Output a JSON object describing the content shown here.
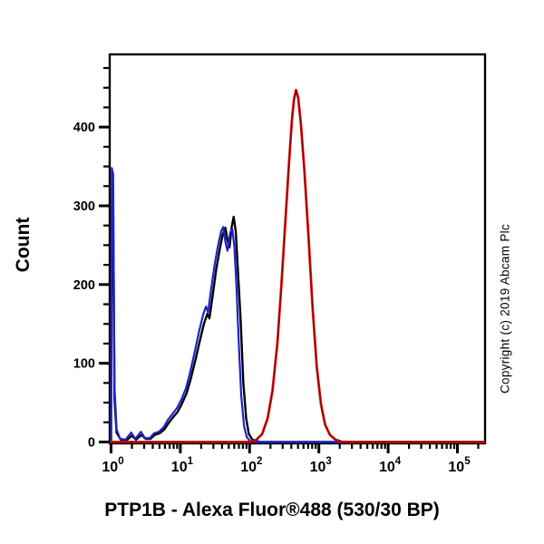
{
  "figure": {
    "background": "#ffffff",
    "frame_color": "#000000"
  },
  "chart_data": {
    "type": "line",
    "subtype": "flow-cytometry-histogram",
    "title": "PTP1B - Alexa Fluor®488 (530/30 BP)",
    "xlabel": "PTP1B - Alexa Fluor®488 (530/30 BP)",
    "ylabel": "Count",
    "copyright": "Copyright (c) 2019 Abcam Plc",
    "x_scale": "log10",
    "xlim_log10": [
      0,
      5.4
    ],
    "ylim": [
      0,
      490
    ],
    "grid": false,
    "legend": "none",
    "x_major_ticks": [
      {
        "base": "10",
        "exponent": "0",
        "log10": 0
      },
      {
        "base": "10",
        "exponent": "1",
        "log10": 1
      },
      {
        "base": "10",
        "exponent": "2",
        "log10": 2
      },
      {
        "base": "10",
        "exponent": "3",
        "log10": 3
      },
      {
        "base": "10",
        "exponent": "4",
        "log10": 4
      },
      {
        "base": "10",
        "exponent": "5",
        "log10": 5
      }
    ],
    "x_minor_ticks": "2-9 per decade",
    "y_major_ticks": [
      {
        "label": "0",
        "value": 0
      },
      {
        "label": "100",
        "value": 100
      },
      {
        "label": "200",
        "value": 200
      },
      {
        "label": "300",
        "value": 300
      },
      {
        "label": "400",
        "value": 400
      }
    ],
    "y_minor_step": 25,
    "series": [
      {
        "name": "black-curve",
        "color": "#000000",
        "stroke_width": 2.4,
        "points_log10x_count": [
          [
            0.0,
            0
          ],
          [
            0.01,
            300
          ],
          [
            0.03,
            300
          ],
          [
            0.05,
            55
          ],
          [
            0.08,
            12
          ],
          [
            0.14,
            3
          ],
          [
            0.22,
            2
          ],
          [
            0.3,
            8
          ],
          [
            0.36,
            3
          ],
          [
            0.44,
            9
          ],
          [
            0.5,
            4
          ],
          [
            0.57,
            4
          ],
          [
            0.63,
            9
          ],
          [
            0.7,
            11
          ],
          [
            0.77,
            16
          ],
          [
            0.83,
            24
          ],
          [
            0.9,
            32
          ],
          [
            0.96,
            38
          ],
          [
            1.02,
            48
          ],
          [
            1.09,
            62
          ],
          [
            1.15,
            80
          ],
          [
            1.22,
            105
          ],
          [
            1.28,
            128
          ],
          [
            1.34,
            150
          ],
          [
            1.39,
            163
          ],
          [
            1.42,
            157
          ],
          [
            1.47,
            188
          ],
          [
            1.52,
            220
          ],
          [
            1.57,
            245
          ],
          [
            1.61,
            263
          ],
          [
            1.65,
            272
          ],
          [
            1.68,
            256
          ],
          [
            1.71,
            247
          ],
          [
            1.74,
            272
          ],
          [
            1.77,
            286
          ],
          [
            1.8,
            268
          ],
          [
            1.83,
            220
          ],
          [
            1.87,
            155
          ],
          [
            1.91,
            75
          ],
          [
            1.95,
            30
          ],
          [
            1.99,
            10
          ],
          [
            2.04,
            3
          ],
          [
            2.15,
            0
          ],
          [
            5.4,
            0
          ]
        ]
      },
      {
        "name": "blue-curve",
        "color": "#2121cc",
        "stroke_width": 2.2,
        "points_log10x_count": [
          [
            0.0,
            0
          ],
          [
            0.01,
            348
          ],
          [
            0.03,
            340
          ],
          [
            0.05,
            70
          ],
          [
            0.08,
            16
          ],
          [
            0.13,
            4
          ],
          [
            0.21,
            3
          ],
          [
            0.29,
            12
          ],
          [
            0.35,
            4
          ],
          [
            0.43,
            13
          ],
          [
            0.49,
            5
          ],
          [
            0.56,
            5
          ],
          [
            0.62,
            11
          ],
          [
            0.69,
            13
          ],
          [
            0.76,
            19
          ],
          [
            0.82,
            28
          ],
          [
            0.89,
            36
          ],
          [
            0.95,
            43
          ],
          [
            1.01,
            53
          ],
          [
            1.08,
            68
          ],
          [
            1.14,
            88
          ],
          [
            1.21,
            115
          ],
          [
            1.27,
            140
          ],
          [
            1.33,
            162
          ],
          [
            1.37,
            172
          ],
          [
            1.4,
            165
          ],
          [
            1.45,
            198
          ],
          [
            1.5,
            228
          ],
          [
            1.55,
            252
          ],
          [
            1.59,
            268
          ],
          [
            1.62,
            273
          ],
          [
            1.65,
            254
          ],
          [
            1.68,
            243
          ],
          [
            1.72,
            266
          ],
          [
            1.75,
            271
          ],
          [
            1.78,
            248
          ],
          [
            1.81,
            198
          ],
          [
            1.84,
            132
          ],
          [
            1.88,
            58
          ],
          [
            1.92,
            20
          ],
          [
            1.96,
            6
          ],
          [
            2.01,
            1
          ],
          [
            2.1,
            0
          ],
          [
            5.4,
            0
          ]
        ]
      },
      {
        "name": "red-curve",
        "color": "#ee1111",
        "edge_color": "#7a0606",
        "stroke_width": 2.8,
        "points_log10x_count": [
          [
            0.0,
            0
          ],
          [
            2.02,
            0
          ],
          [
            2.1,
            3
          ],
          [
            2.18,
            10
          ],
          [
            2.26,
            30
          ],
          [
            2.33,
            65
          ],
          [
            2.4,
            125
          ],
          [
            2.46,
            200
          ],
          [
            2.52,
            285
          ],
          [
            2.57,
            355
          ],
          [
            2.61,
            408
          ],
          [
            2.64,
            435
          ],
          [
            2.67,
            447
          ],
          [
            2.7,
            438
          ],
          [
            2.74,
            405
          ],
          [
            2.79,
            345
          ],
          [
            2.85,
            262
          ],
          [
            2.91,
            170
          ],
          [
            2.97,
            95
          ],
          [
            3.03,
            48
          ],
          [
            3.09,
            22
          ],
          [
            3.16,
            9
          ],
          [
            3.24,
            3
          ],
          [
            3.34,
            0
          ],
          [
            5.4,
            0
          ]
        ]
      }
    ]
  }
}
